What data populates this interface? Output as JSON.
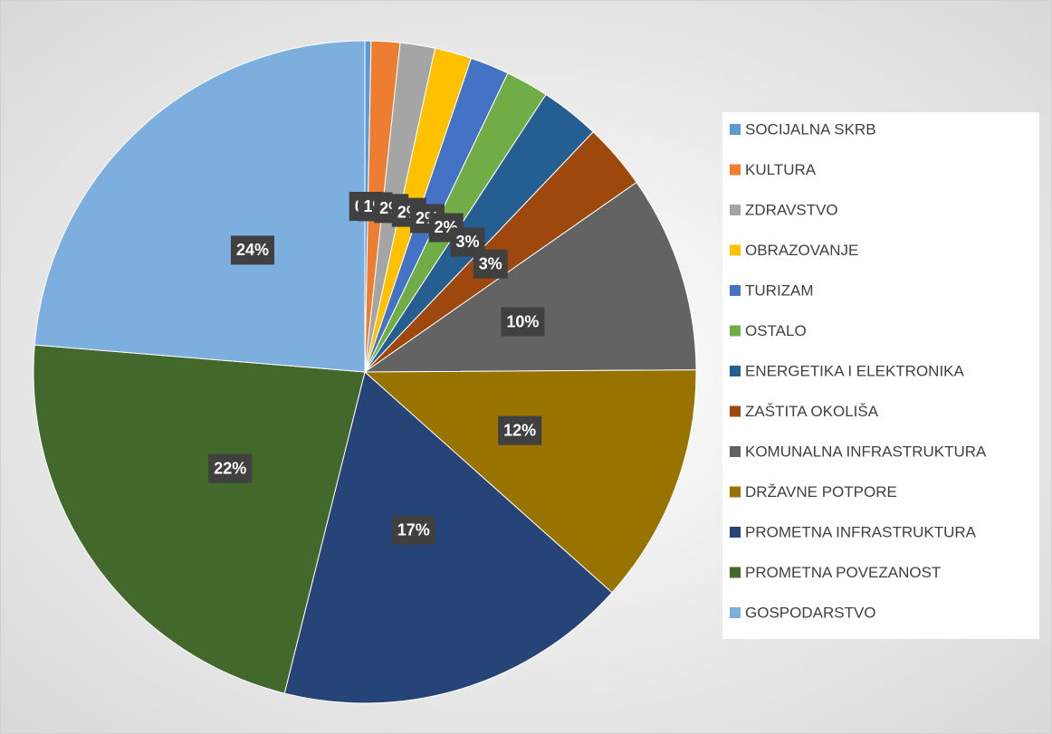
{
  "chart_data": {
    "type": "pie",
    "categories": [
      "SOCIJALNA SKRB",
      "KULTURA",
      "ZDRAVSTVO",
      "OBRAZOVANJE",
      "TURIZAM",
      "OSTALO",
      "ENERGETIKA I ELEKTRONIKA",
      "ZAŠTITA OKOLIŠA",
      "KOMUNALNA INFRASTRUKTURA",
      "DRŽAVNE POTPORE",
      "PROMETNA INFRASTRUKTURA",
      "PROMETNA POVEZANOST",
      "GOSPODARSTVO"
    ],
    "values": [
      0.3,
      1.4,
      1.7,
      1.8,
      1.9,
      2.1,
      2.9,
      3.2,
      9.6,
      11.7,
      17.3,
      22.4,
      23.7
    ],
    "value_labels": [
      "0%",
      "1%",
      "2%",
      "2%",
      "2%",
      "2%",
      "3%",
      "3%",
      "10%",
      "12%",
      "17%",
      "22%",
      "24%"
    ],
    "colors": [
      "#5b9bd5",
      "#ed7d31",
      "#a5a5a5",
      "#ffc000",
      "#4472c4",
      "#70ad47",
      "#255e91",
      "#9e480e",
      "#636363",
      "#997300",
      "#264478",
      "#43682b",
      "#7cafdd"
    ],
    "legend": "right"
  }
}
